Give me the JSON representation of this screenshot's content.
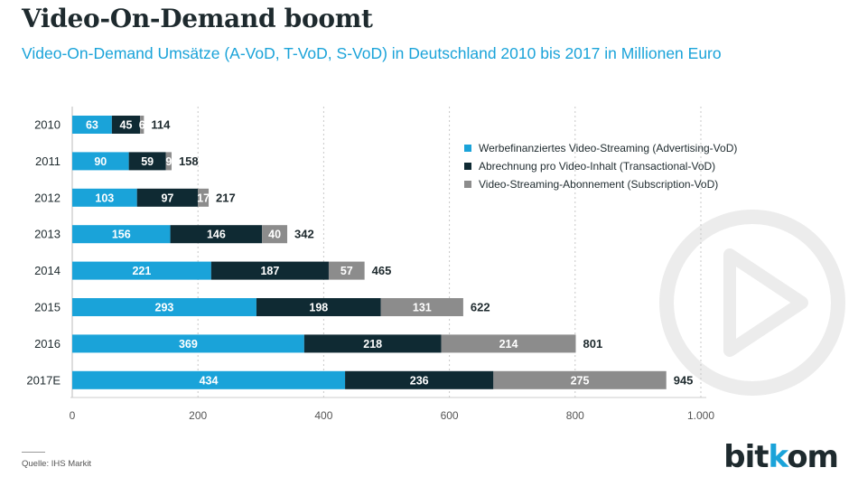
{
  "header": {
    "title": "Video-On-Demand boomt",
    "subtitle": "Video-On-Demand Umsätze (A-VoD, T-VoD, S-VoD) in Deutschland 2010 bis 2017 in Millionen Euro"
  },
  "footer": {
    "source": "Quelle: IHS Markit",
    "logo_main": "bit",
    "logo_accent": "k",
    "logo_rest": "om"
  },
  "legend": {
    "placement": "top-right",
    "items": [
      {
        "label": "Werbefinanziertes Video-Streaming (Advertising-VoD)",
        "color": "#1aa3d9"
      },
      {
        "label": "Abrechnung pro Video-Inhalt (Transactional-VoD)",
        "color": "#0f2a33"
      },
      {
        "label": "Video-Streaming-Abonnement (Subscription-VoD)",
        "color": "#8c8c8c"
      }
    ]
  },
  "chart_data": {
    "type": "bar",
    "orientation": "horizontal",
    "stacked": true,
    "categories": [
      "2010",
      "2011",
      "2012",
      "2013",
      "2014",
      "2015",
      "2016",
      "2017E"
    ],
    "series": [
      {
        "name": "Werbefinanziertes Video-Streaming (Advertising-VoD)",
        "color": "#1aa3d9",
        "values": [
          63,
          90,
          103,
          156,
          221,
          293,
          369,
          434
        ]
      },
      {
        "name": "Abrechnung pro Video-Inhalt (Transactional-VoD)",
        "color": "#0f2a33",
        "values": [
          45,
          59,
          97,
          146,
          187,
          198,
          218,
          236
        ]
      },
      {
        "name": "Video-Streaming-Abonnement (Subscription-VoD)",
        "color": "#8c8c8c",
        "values": [
          6,
          9,
          17,
          40,
          57,
          131,
          214,
          275
        ]
      }
    ],
    "totals": [
      114,
      158,
      217,
      342,
      465,
      622,
      801,
      945
    ],
    "xlim": [
      0,
      1000
    ],
    "xticks": [
      0,
      200,
      400,
      600,
      800,
      1000
    ],
    "xtick_labels": [
      "0",
      "200",
      "400",
      "600",
      "800",
      "1.000"
    ],
    "grid": "vertical-dashed",
    "xlabel": "",
    "ylabel": ""
  }
}
